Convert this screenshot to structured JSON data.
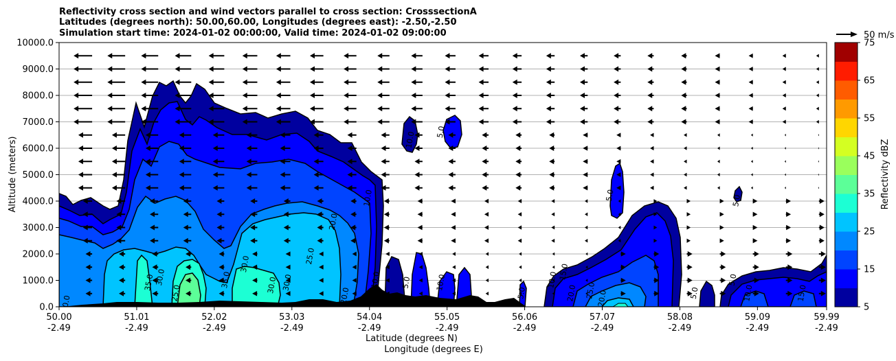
{
  "chart_data": {
    "type": "heatmap",
    "title_lines": [
      "Reflectivity cross section and wind vectors parallel to cross section: CrosssectionA",
      "Latitudes (degrees north): 50.00,60.00, Longitudes (degrees east): -2.50,-2.50",
      "Simulation start time: 2024-01-02 00:00:00, Valid time: 2024-01-02 09:00:00"
    ],
    "xlabel": "Latitude (degrees N)",
    "xlabel2": "Longitude (degrees E)",
    "ylabel": "Altitude (meters)",
    "xlim": [
      50.0,
      59.99
    ],
    "ylim": [
      0,
      10000
    ],
    "x_ticks": [
      {
        "lat": 50.0,
        "label": "50.00",
        "label2": "-2.49"
      },
      {
        "lat": 51.01,
        "label": "51.01",
        "label2": "-2.49"
      },
      {
        "lat": 52.02,
        "label": "52.02",
        "label2": "-2.49"
      },
      {
        "lat": 53.03,
        "label": "53.03",
        "label2": "-2.49"
      },
      {
        "lat": 54.04,
        "label": "54.04",
        "label2": "-2.49"
      },
      {
        "lat": 55.05,
        "label": "55.05",
        "label2": "-2.49"
      },
      {
        "lat": 56.06,
        "label": "56.06",
        "label2": "-2.49"
      },
      {
        "lat": 57.07,
        "label": "57.07",
        "label2": "-2.49"
      },
      {
        "lat": 58.08,
        "label": "58.08",
        "label2": "-2.49"
      },
      {
        "lat": 59.09,
        "label": "59.09",
        "label2": "-2.49"
      },
      {
        "lat": 59.99,
        "label": "59.99",
        "label2": "-2.49"
      }
    ],
    "y_ticks": [
      {
        "value": 0,
        "label": "0.0"
      },
      {
        "value": 1000,
        "label": "1000.0"
      },
      {
        "value": 2000,
        "label": "2000.0"
      },
      {
        "value": 3000,
        "label": "3000.0"
      },
      {
        "value": 4000,
        "label": "4000.0"
      },
      {
        "value": 5000,
        "label": "5000.0"
      },
      {
        "value": 6000,
        "label": "6000.0"
      },
      {
        "value": 7000,
        "label": "7000.0"
      },
      {
        "value": 8000,
        "label": "8000.0"
      },
      {
        "value": 9000,
        "label": "9000.0"
      },
      {
        "value": 10000,
        "label": "10000.0"
      }
    ],
    "grid": "horizontal",
    "colorbar": {
      "label": "Reflectivity dBZ",
      "min": 5,
      "max": 75,
      "step": 5,
      "tick_values": [
        5,
        15,
        25,
        35,
        45,
        55,
        65,
        75
      ],
      "tick_labels": [
        "5",
        "15",
        "25",
        "35",
        "45",
        "55",
        "65",
        "75"
      ],
      "colors": [
        "#00009f",
        "#0000ff",
        "#0044ff",
        "#0088ff",
        "#00c4ff",
        "#1cffd4",
        "#5cff98",
        "#9aff5c",
        "#d4ff22",
        "#ffd600",
        "#ff9a00",
        "#ff5c00",
        "#ff1c00",
        "#a00000"
      ]
    },
    "quiver_key": {
      "label": "50 m/s",
      "speed": 50
    },
    "wind_vector_heights": [
      500,
      1000,
      1500,
      2000,
      2500,
      3000,
      3500,
      4000,
      4500,
      5000,
      5500,
      6000,
      6500,
      7000,
      7500,
      8000,
      8500,
      9000,
      9500
    ],
    "wind_vector_lats": [
      50.0,
      50.43,
      50.86,
      51.29,
      51.72,
      52.15,
      52.58,
      53.01,
      53.44,
      53.87,
      54.3,
      54.73,
      55.16,
      55.59,
      56.02,
      56.45,
      56.88,
      57.31,
      57.74,
      58.17,
      58.6,
      59.03,
      59.46,
      59.89
    ],
    "contour_labels": [
      {
        "lat": 50.12,
        "alt": 100,
        "text": "20.0"
      },
      {
        "lat": 51.2,
        "alt": 900,
        "text": "35.0"
      },
      {
        "lat": 51.35,
        "alt": 1100,
        "text": "30.0"
      },
      {
        "lat": 51.55,
        "alt": 500,
        "text": "25.0"
      },
      {
        "lat": 52.2,
        "alt": 1000,
        "text": "35.0"
      },
      {
        "lat": 52.45,
        "alt": 1600,
        "text": "30.0"
      },
      {
        "lat": 52.8,
        "alt": 800,
        "text": "30.0"
      },
      {
        "lat": 53.0,
        "alt": 900,
        "text": "30.0"
      },
      {
        "lat": 53.3,
        "alt": 1900,
        "text": "25.0"
      },
      {
        "lat": 53.6,
        "alt": 3200,
        "text": "20.0"
      },
      {
        "lat": 53.75,
        "alt": 400,
        "text": "20.0"
      },
      {
        "lat": 54.05,
        "alt": 4100,
        "text": "10.0"
      },
      {
        "lat": 54.15,
        "alt": 1000,
        "text": "10.0"
      },
      {
        "lat": 54.55,
        "alt": 900,
        "text": "5.0"
      },
      {
        "lat": 54.6,
        "alt": 6300,
        "text": "10.0"
      },
      {
        "lat": 55.0,
        "alt": 6600,
        "text": "5.0"
      },
      {
        "lat": 55.0,
        "alt": 900,
        "text": "10.0"
      },
      {
        "lat": 56.05,
        "alt": 500,
        "text": "5.0"
      },
      {
        "lat": 56.45,
        "alt": 1000,
        "text": "10.0"
      },
      {
        "lat": 56.6,
        "alt": 1300,
        "text": "15.0"
      },
      {
        "lat": 56.7,
        "alt": 500,
        "text": "20.0"
      },
      {
        "lat": 56.95,
        "alt": 600,
        "text": "25.0"
      },
      {
        "lat": 57.1,
        "alt": 300,
        "text": "20.0"
      },
      {
        "lat": 57.2,
        "alt": 4200,
        "text": "5.0"
      },
      {
        "lat": 58.3,
        "alt": 500,
        "text": "5.0"
      },
      {
        "lat": 58.85,
        "alt": 4000,
        "text": "5.0"
      },
      {
        "lat": 58.8,
        "alt": 1000,
        "text": "5.0"
      },
      {
        "lat": 59.0,
        "alt": 500,
        "text": "10.0"
      },
      {
        "lat": 59.7,
        "alt": 500,
        "text": "15.0"
      }
    ]
  }
}
